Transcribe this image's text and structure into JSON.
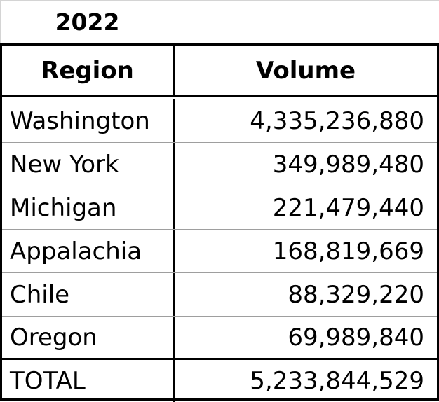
{
  "year_label": "2022",
  "table": {
    "headers": {
      "region": "Region",
      "volume": "Volume"
    },
    "rows": [
      {
        "region": "Washington",
        "volume": "4,335,236,880"
      },
      {
        "region": "New York",
        "volume": "349,989,480"
      },
      {
        "region": "Michigan",
        "volume": "221,479,440"
      },
      {
        "region": "Appalachia",
        "volume": "168,819,669"
      },
      {
        "region": "Chile",
        "volume": "88,329,220"
      },
      {
        "region": "Oregon",
        "volume": "69,989,840"
      }
    ],
    "total": {
      "label": "TOTAL",
      "volume": "5,233,844,529"
    }
  },
  "colors": {
    "border": "#000000",
    "gridline": "#d4d4d4",
    "background": "#ffffff",
    "text": "#000000"
  }
}
